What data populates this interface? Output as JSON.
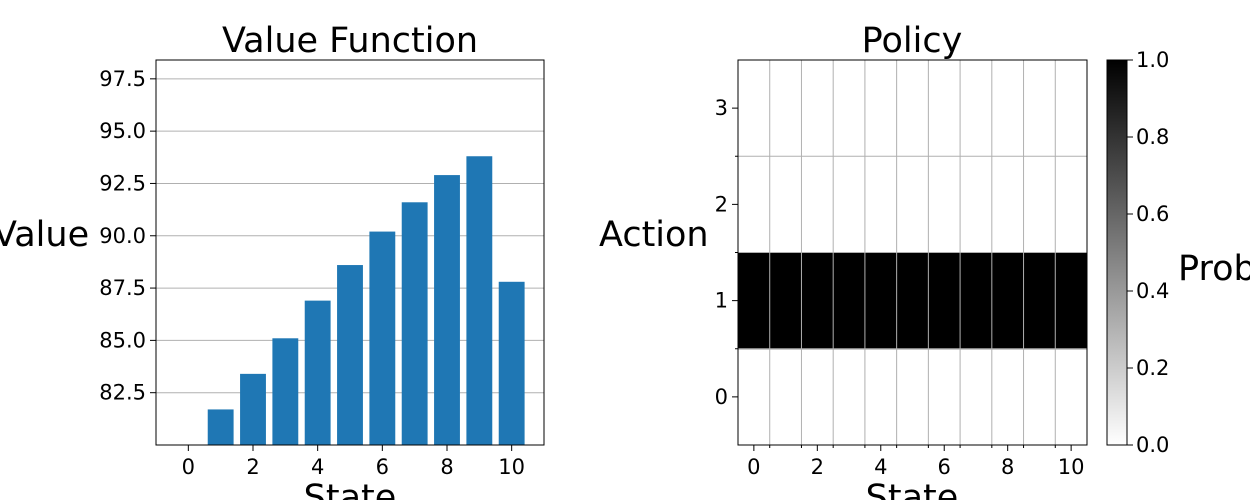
{
  "chart_data": [
    {
      "type": "bar",
      "title": "Value Function",
      "xlabel": "State",
      "ylabel": "Value",
      "categories": [
        0,
        1,
        2,
        3,
        4,
        5,
        6,
        7,
        8,
        9,
        10
      ],
      "values": [
        80.0,
        81.7,
        83.4,
        85.1,
        86.9,
        88.6,
        90.2,
        91.6,
        92.9,
        93.8,
        87.8
      ],
      "xlim": [
        -1,
        11
      ],
      "ylim": [
        80.0,
        98.4
      ],
      "xticks": [
        0,
        2,
        4,
        6,
        8,
        10
      ],
      "yticks": [
        82.5,
        85.0,
        87.5,
        90.0,
        92.5,
        95.0,
        97.5
      ],
      "ytick_labels": [
        "82.5",
        "85.0",
        "87.5",
        "90.0",
        "92.5",
        "95.0",
        "97.5"
      ],
      "grid": "y",
      "bar_color": "#1f77b4"
    },
    {
      "type": "heatmap",
      "title": "Policy",
      "xlabel": "State",
      "ylabel": "Action",
      "x": [
        0,
        1,
        2,
        3,
        4,
        5,
        6,
        7,
        8,
        9,
        10
      ],
      "y": [
        0,
        1,
        2,
        3
      ],
      "xticks": [
        0,
        2,
        4,
        6,
        8,
        10
      ],
      "yticks": [
        0,
        1,
        2,
        3
      ],
      "values": [
        [
          0,
          0,
          0,
          0,
          0,
          0,
          0,
          0,
          0,
          0,
          0
        ],
        [
          1,
          1,
          1,
          1,
          1,
          1,
          1,
          1,
          1,
          1,
          1
        ],
        [
          0,
          0,
          0,
          0,
          0,
          0,
          0,
          0,
          0,
          0,
          0
        ],
        [
          0,
          0,
          0,
          0,
          0,
          0,
          0,
          0,
          0,
          0,
          0
        ]
      ],
      "colormap": "gray_r",
      "colorbar": {
        "label": "Prob",
        "range": [
          0.0,
          1.0
        ],
        "ticks": [
          "0.0",
          "0.2",
          "0.4",
          "0.6",
          "0.8",
          "1.0"
        ]
      },
      "grid": true
    }
  ]
}
